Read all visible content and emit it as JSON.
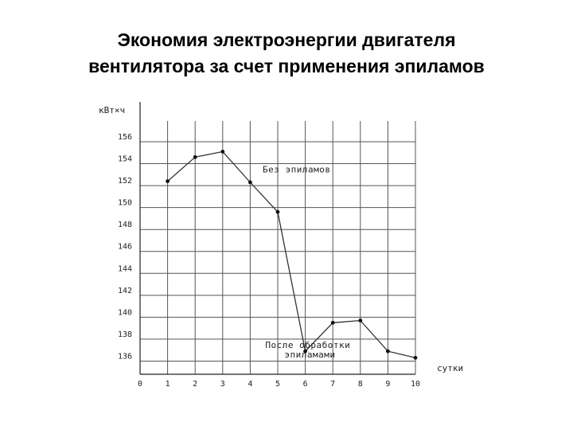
{
  "slide": {
    "title_line1": "Экономия электроэнергии двигателя",
    "title_line2": "вентилятора за счет применения эпиламов"
  },
  "chart_data": {
    "type": "line",
    "title": "Экономия электроэнергии двигателя вентилятора за счет применения эпиламов",
    "ylabel": "кВт×ч",
    "xlabel": "сутки",
    "x_ticks": [
      "0",
      "1",
      "2",
      "3",
      "4",
      "5",
      "6",
      "7",
      "8",
      "9",
      "10"
    ],
    "y_ticks": [
      "136",
      "138",
      "140",
      "142",
      "144",
      "146",
      "148",
      "150",
      "152",
      "154",
      "156"
    ],
    "xlim": [
      0,
      10
    ],
    "ylim": [
      134.8,
      156
    ],
    "grid": true,
    "series": [
      {
        "x": [
          1,
          2,
          3,
          4,
          5,
          6,
          7,
          8,
          9,
          10
        ],
        "y": [
          152.4,
          154.6,
          155.1,
          152.3,
          149.6,
          136.9,
          139.5,
          139.7,
          136.9,
          136.3
        ]
      }
    ],
    "annotations": [
      {
        "lines": [
          "Без эпиламов"
        ],
        "x": 4.45,
        "y": 153.2
      },
      {
        "lines": [
          "После обработки",
          "эпиламами"
        ],
        "x": 4.55,
        "y": 137.2
      }
    ],
    "line_color": "#333333",
    "grid_color": "#555555"
  }
}
